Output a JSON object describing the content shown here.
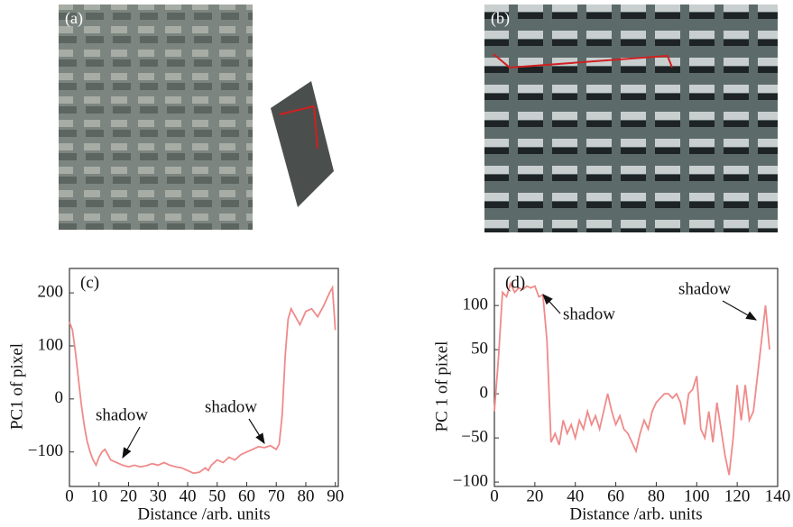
{
  "images": [
    {
      "label": "(a)"
    },
    {
      "label": "(b)"
    }
  ],
  "chart_data": [
    {
      "type": "line",
      "panel": "(c)",
      "xlabel": "Distance /arb. units",
      "ylabel": "PC1 of pixel",
      "xlim": [
        0,
        91
      ],
      "ylim": [
        -165,
        246
      ],
      "xticks": [
        0,
        10,
        20,
        30,
        40,
        50,
        60,
        70,
        80,
        90
      ],
      "yticks": [
        200,
        100,
        0,
        {
          "value": -100,
          "label": "−100"
        }
      ],
      "color": "#f08a8a",
      "annotations": [
        {
          "text": "shadow"
        },
        {
          "text": "shadow"
        }
      ],
      "x": [
        0,
        1,
        2,
        3,
        4,
        5,
        6,
        7,
        8,
        9,
        10,
        11,
        12,
        13,
        14,
        16,
        18,
        20,
        22,
        24,
        26,
        28,
        30,
        32,
        34,
        36,
        38,
        40,
        42,
        44,
        46,
        47,
        48,
        50,
        52,
        54,
        56,
        58,
        60,
        62,
        64,
        66,
        68,
        70,
        71,
        72,
        73,
        74,
        75,
        76,
        78,
        80,
        82,
        84,
        86,
        88,
        89,
        90
      ],
      "values": [
        145,
        130,
        90,
        40,
        -10,
        -50,
        -80,
        -100,
        -115,
        -125,
        -110,
        -100,
        -95,
        -105,
        -115,
        -120,
        -125,
        -128,
        -125,
        -128,
        -126,
        -122,
        -125,
        -120,
        -125,
        -128,
        -130,
        -135,
        -140,
        -138,
        -130,
        -135,
        -125,
        -115,
        -120,
        -110,
        -115,
        -105,
        -100,
        -95,
        -90,
        -92,
        -88,
        -95,
        -85,
        -30,
        80,
        150,
        170,
        160,
        140,
        165,
        170,
        155,
        175,
        200,
        210,
        130
      ]
    },
    {
      "type": "line",
      "panel": "(d)",
      "xlabel": "Distance /arb. units",
      "ylabel": "PC 1 of pixel",
      "xlim": [
        0,
        140
      ],
      "ylim": [
        -105,
        142
      ],
      "xticks": [
        0,
        20,
        40,
        60,
        80,
        100,
        120,
        140
      ],
      "yticks": [
        100,
        50,
        0,
        {
          "value": -50,
          "label": "−50"
        },
        {
          "value": -100,
          "label": "−100"
        }
      ],
      "color": "#f08a8a",
      "annotations": [
        {
          "text": "shadow"
        },
        {
          "text": "shadow"
        }
      ],
      "x": [
        0,
        2,
        4,
        6,
        8,
        10,
        12,
        14,
        16,
        18,
        20,
        22,
        24,
        26,
        28,
        30,
        32,
        34,
        36,
        38,
        40,
        42,
        44,
        46,
        48,
        50,
        52,
        54,
        56,
        58,
        60,
        62,
        64,
        66,
        68,
        70,
        72,
        74,
        76,
        78,
        80,
        82,
        84,
        86,
        88,
        90,
        92,
        94,
        96,
        98,
        100,
        102,
        104,
        106,
        108,
        110,
        112,
        114,
        116,
        118,
        120,
        122,
        124,
        126,
        128,
        130,
        132,
        134,
        136
      ],
      "values": [
        -20,
        40,
        115,
        110,
        125,
        115,
        120,
        118,
        122,
        120,
        122,
        110,
        112,
        60,
        -55,
        -45,
        -58,
        -30,
        -45,
        -35,
        -50,
        -30,
        -40,
        -20,
        -35,
        -25,
        -40,
        -20,
        0,
        -20,
        -35,
        -25,
        -40,
        -45,
        -55,
        -65,
        -45,
        -30,
        -40,
        -20,
        -10,
        -5,
        0,
        0,
        -5,
        0,
        -10,
        -35,
        0,
        5,
        20,
        -40,
        -50,
        -20,
        -55,
        -10,
        -40,
        -70,
        -92,
        -50,
        10,
        -30,
        10,
        -30,
        -20,
        20,
        60,
        100,
        50
      ]
    }
  ]
}
